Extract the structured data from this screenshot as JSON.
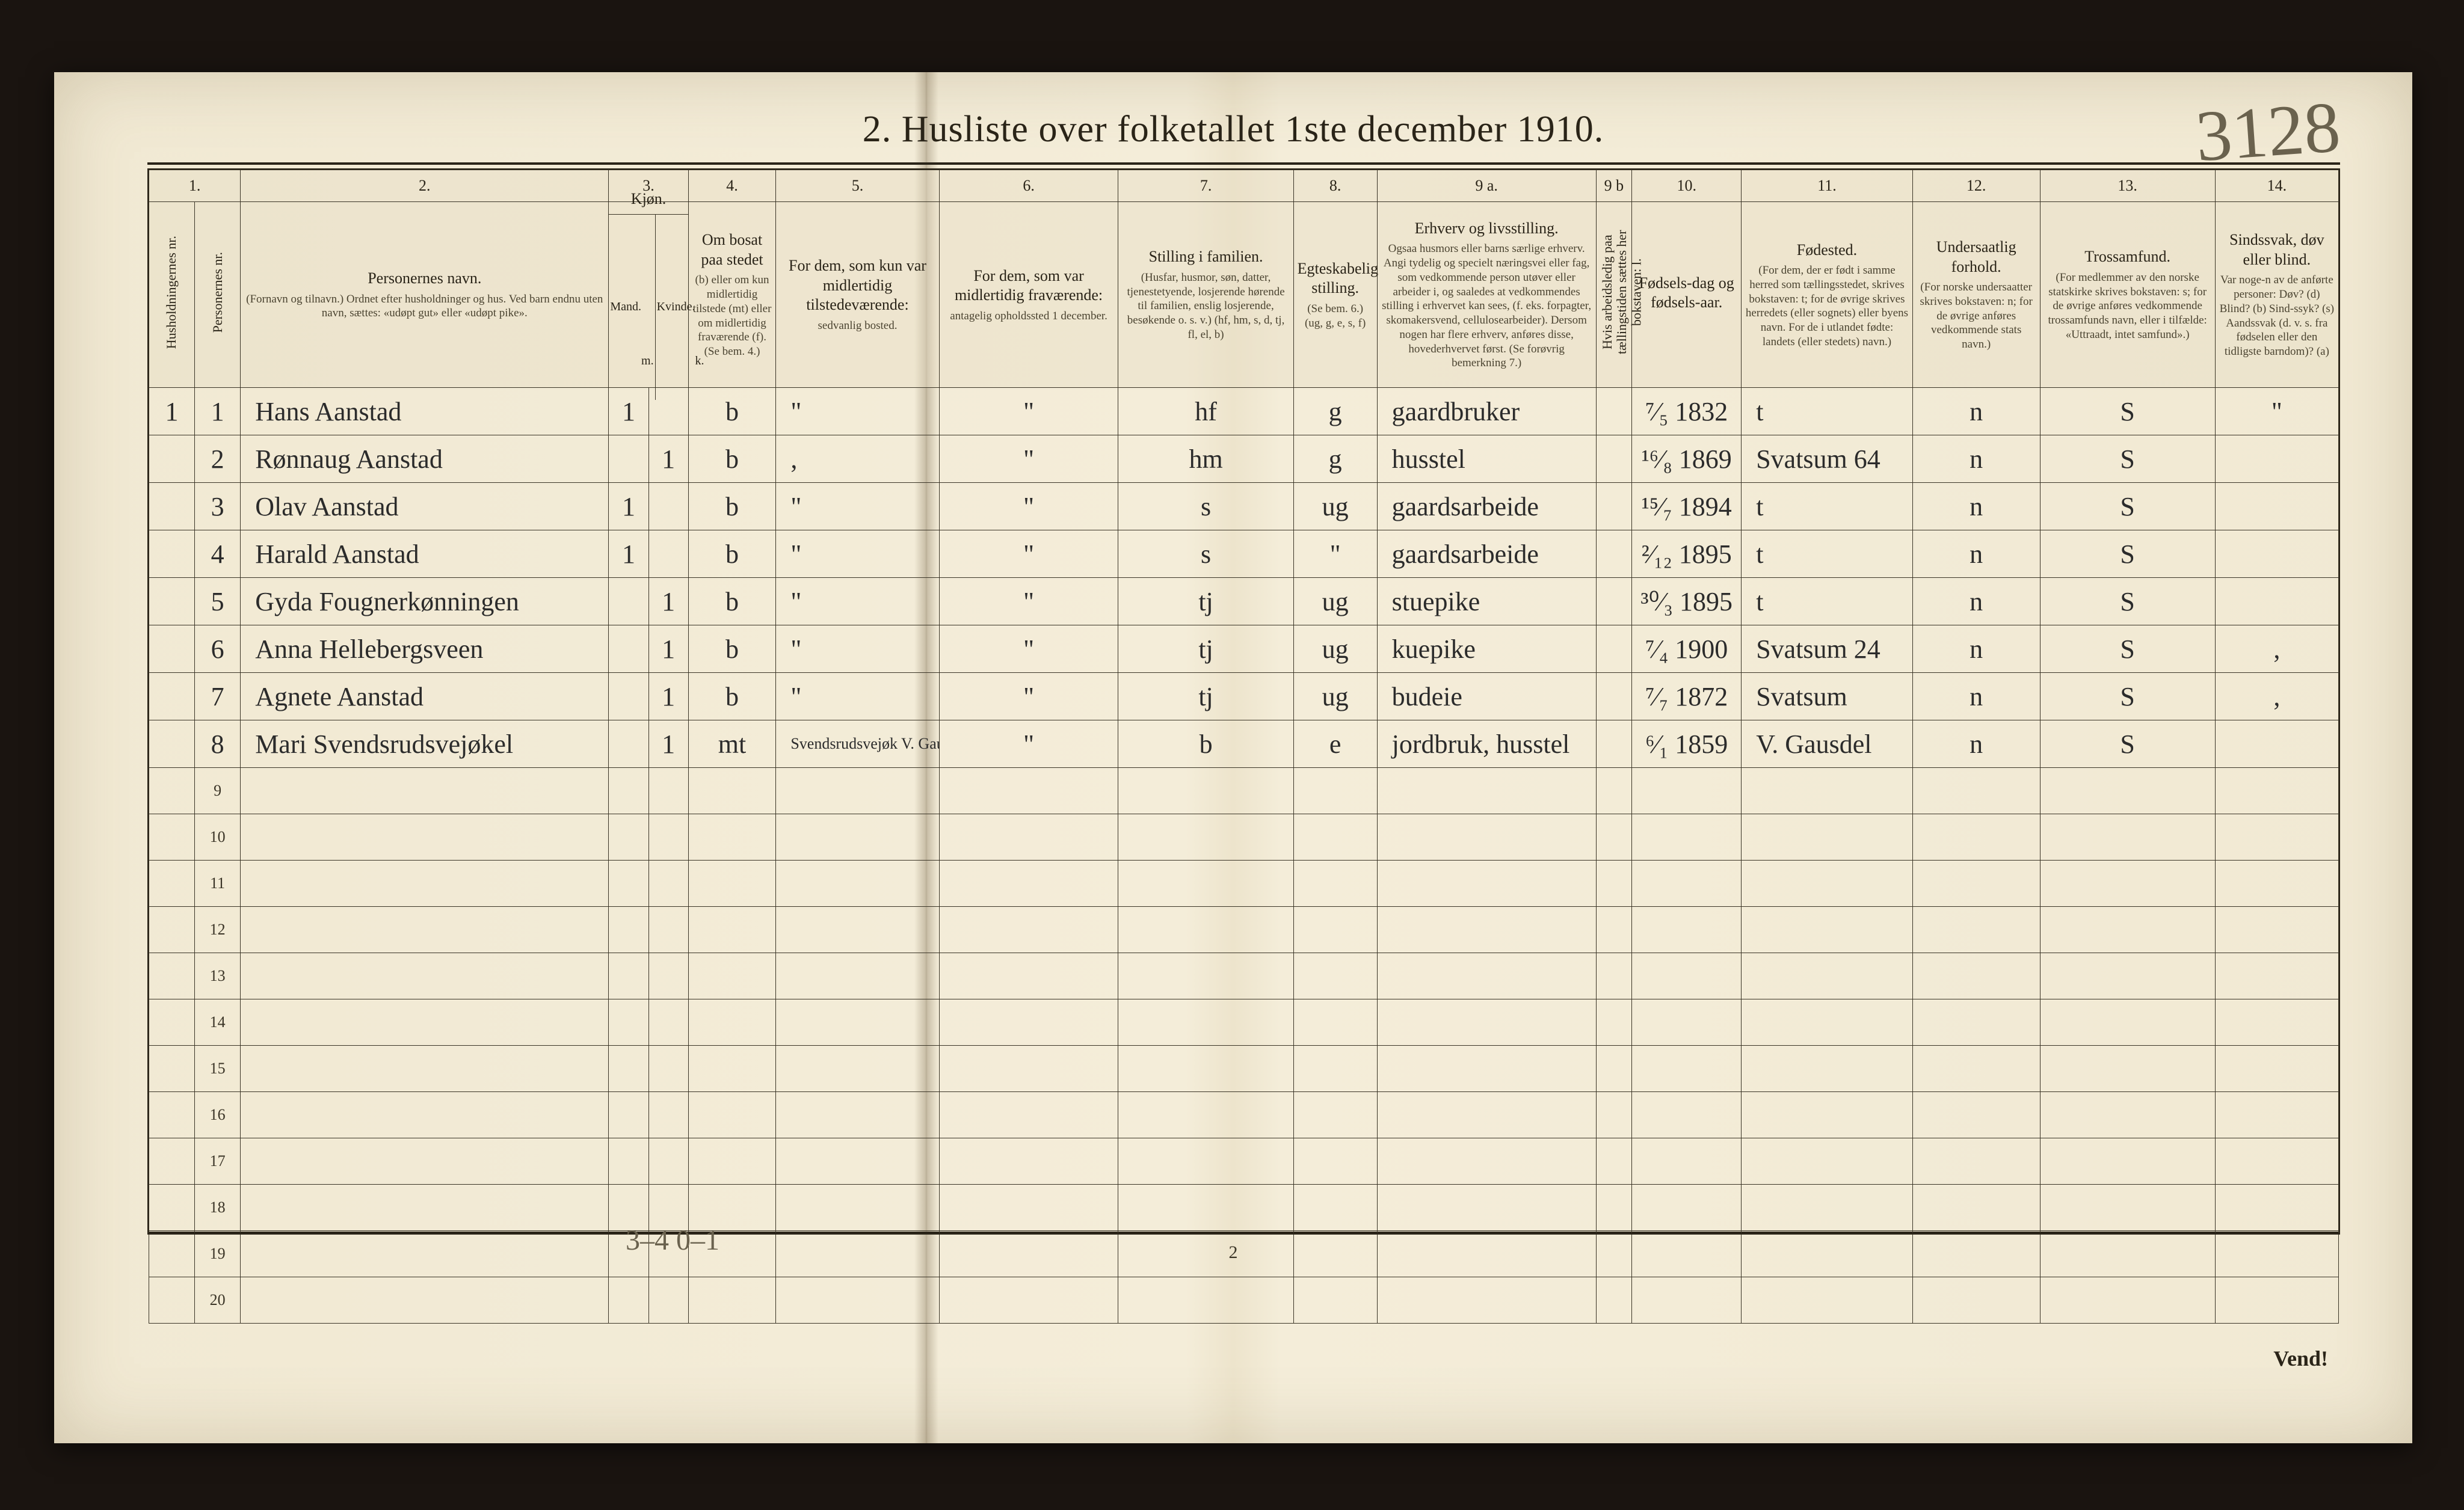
{
  "title": "2.  Husliste over folketallet 1ste december 1910.",
  "corner_annotation": "3128",
  "footer_page": "2",
  "footer_handnote": "3–4   0–1",
  "vend": "Vend!",
  "colors": {
    "paper": "#f1e9d3",
    "ink": "#2a2418",
    "handwriting": "#2b2b2b",
    "faded_hand": "#6a624e",
    "background": "#1a1410",
    "rule": "#3a3426"
  },
  "typography": {
    "title_fontsize": 62,
    "header_fontsize": 22,
    "colnum_fontsize": 28,
    "hand_fontsize": 44,
    "vend_fontsize": 36
  },
  "columns": {
    "widths_pct": [
      2.3,
      2.3,
      18.5,
      2.0,
      2.0,
      4.4,
      8.2,
      9.0,
      8.8,
      4.2,
      11.0,
      1.8,
      5.5,
      8.6,
      6.4,
      8.8,
      6.2
    ],
    "numbers": [
      "1.",
      "",
      "2.",
      "3.",
      "",
      "4.",
      "5.",
      "6.",
      "7.",
      "8.",
      "9 a.",
      "9 b",
      "10.",
      "11.",
      "12.",
      "13.",
      "14."
    ],
    "headers": [
      {
        "main": "",
        "sub": "Husholdningernes nr.",
        "vertical": true
      },
      {
        "main": "",
        "sub": "Personernes nr.",
        "vertical": true
      },
      {
        "main": "Personernes navn.",
        "sub": "(Fornavn og tilnavn.)  Ordnet efter husholdninger og hus.  Ved barn endnu uten navn, sættes: «udøpt gut» eller «udøpt pike»."
      },
      {
        "main": "Kjøn.",
        "sub": "Mand.  m.",
        "split": true,
        "split_labels": [
          "Mand.",
          "Kvinde."
        ]
      },
      {
        "main": "",
        "sub": "Kvinde.  k."
      },
      {
        "main": "Om bosat paa stedet",
        "sub": "(b) eller om kun midlertidig tilstede (mt) eller om midlertidig fraværende (f).  (Se bem. 4.)"
      },
      {
        "main": "For dem, som kun var midlertidig tilstedeværende:",
        "sub": "sedvanlig bosted."
      },
      {
        "main": "For dem, som var midlertidig fraværende:",
        "sub": "antagelig opholdssted 1 december."
      },
      {
        "main": "Stilling i familien.",
        "sub": "(Husfar, husmor, søn, datter, tjenestetyende, losjerende hørende til familien, enslig losjerende, besøkende o. s. v.)  (hf, hm, s, d, tj, fl, el, b)"
      },
      {
        "main": "Egteskabelig stilling.",
        "sub": "(Se bem. 6.)  (ug, g, e, s, f)"
      },
      {
        "main": "Erhverv og livsstilling.",
        "sub": "Ogsaa husmors eller barns særlige erhverv.  Angi tydelig og specielt næringsvei eller fag, som vedkommende person utøver eller arbeider i, og saaledes at vedkommendes stilling i erhvervet kan sees, (f. eks. forpagter, skomakersvend, cellulosearbeider).  Dersom nogen har flere erhverv, anføres disse, hovederhvervet først.  (Se forøvrig bemerkning 7.)"
      },
      {
        "main": "",
        "sub": "Hvis arbeidsledig paa tællingstiden sættes her bokstaven: l.",
        "vertical": true
      },
      {
        "main": "Fødsels-dag og fødsels-aar.",
        "sub": ""
      },
      {
        "main": "Fødested.",
        "sub": "(For dem, der er født i samme herred som tællingsstedet, skrives bokstaven: t; for de øvrige skrives herredets (eller sognets) eller byens navn.  For de i utlandet fødte: landets (eller stedets) navn.)"
      },
      {
        "main": "Undersaatlig forhold.",
        "sub": "(For norske undersaatter skrives bokstaven: n; for de øvrige anføres vedkommende stats navn.)"
      },
      {
        "main": "Trossamfund.",
        "sub": "(For medlemmer av den norske statskirke skrives bokstaven: s; for de øvrige anføres vedkommende trossamfunds navn, eller i tilfælde: «Uttraadt, intet samfund».)"
      },
      {
        "main": "Sindssvak, døv eller blind.",
        "sub": "Var noge-n av de anførte personer:  Døv? (d)  Blind? (b)  Sind-ssyk? (s)  Aandssvak (d. v. s. fra fødselen eller den tidligste barndom)? (a)"
      }
    ]
  },
  "rows": [
    {
      "hh": "1",
      "pn": "1",
      "name": "Hans Aanstad",
      "m": "1",
      "k": "",
      "res": "b",
      "tmp": "\"",
      "absent": "\"",
      "fam": "hf",
      "mar": "g",
      "occ": "gaardbruker",
      "wl": "",
      "born": "⁷⁄₅ 1832",
      "place": "t",
      "nat": "n",
      "rel": "S",
      "dis": "\""
    },
    {
      "hh": "",
      "pn": "2",
      "name": "Rønnaug Aanstad",
      "m": "",
      "k": "1",
      "res": "b",
      "tmp": ",",
      "absent": "\"",
      "fam": "hm",
      "mar": "g",
      "occ": "husstel",
      "wl": "",
      "born": "¹⁶⁄₈ 1869",
      "place": "Svatsum  64",
      "nat": "n",
      "rel": "S",
      "dis": ""
    },
    {
      "hh": "",
      "pn": "3",
      "name": "Olav Aanstad",
      "m": "1",
      "k": "",
      "res": "b",
      "tmp": "\"",
      "absent": "\"",
      "fam": "s",
      "mar": "ug",
      "occ": "gaardsarbeide",
      "wl": "",
      "born": "¹⁵⁄₇ 1894",
      "place": "t",
      "nat": "n",
      "rel": "S",
      "dis": ""
    },
    {
      "hh": "",
      "pn": "4",
      "name": "Harald Aanstad",
      "m": "1",
      "k": "",
      "res": "b",
      "tmp": "\"",
      "absent": "\"",
      "fam": "s",
      "mar": "\"",
      "occ": "gaardsarbeide",
      "wl": "",
      "born": "²⁄₁₂ 1895",
      "place": "t",
      "nat": "n",
      "rel": "S",
      "dis": ""
    },
    {
      "hh": "",
      "pn": "5",
      "name": "Gyda Fougnerkønningen",
      "m": "",
      "k": "1",
      "res": "b",
      "tmp": "\"",
      "absent": "\"",
      "fam": "tj",
      "mar": "ug",
      "occ": "stuepike",
      "wl": "",
      "born": "³⁰⁄₃ 1895",
      "place": "t",
      "nat": "n",
      "rel": "S",
      "dis": ""
    },
    {
      "hh": "",
      "pn": "6",
      "name": "Anna Hellebergsveen",
      "m": "",
      "k": "1",
      "res": "b",
      "tmp": "\"",
      "absent": "\"",
      "fam": "tj",
      "mar": "ug",
      "occ": "kuepike",
      "wl": "",
      "born": "⁷⁄₄ 1900",
      "place": "Svatsum  24",
      "nat": "n",
      "rel": "S",
      "dis": ","
    },
    {
      "hh": "",
      "pn": "7",
      "name": "Agnete Aanstad",
      "m": "",
      "k": "1",
      "res": "b",
      "tmp": "\"",
      "absent": "\"",
      "fam": "tj",
      "mar": "ug",
      "occ": "budeie",
      "wl": "",
      "born": "⁷⁄₇ 1872",
      "place": "Svatsum",
      "nat": "n",
      "rel": "S",
      "dis": ","
    },
    {
      "hh": "",
      "pn": "8",
      "name": "Mari Svendsrudsvejøkel",
      "m": "",
      "k": "1",
      "res": "mt",
      "tmp": "Svendsrudsvejøk V. Gausdel",
      "absent": "\"",
      "fam": "b",
      "mar": "e",
      "occ": "jordbruk, husstel",
      "wl": "",
      "born": "⁶⁄₁ 1859",
      "place": "V. Gausdel",
      "nat": "n",
      "rel": "S",
      "dis": ""
    }
  ],
  "empty_row_labels": [
    "9",
    "10",
    "11",
    "12",
    "13",
    "14",
    "15",
    "16",
    "17",
    "18",
    "19",
    "20"
  ]
}
